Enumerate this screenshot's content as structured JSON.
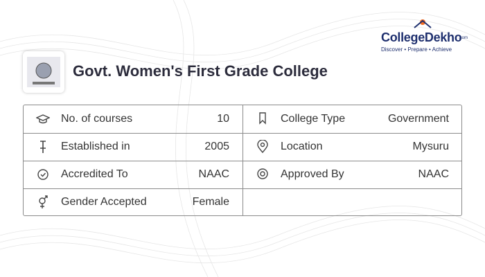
{
  "brand": {
    "name": "CollegeDekho",
    "suffix": ".com",
    "tagline": "Discover • Prepare • Achieve"
  },
  "header": {
    "title": "Govt. Women's First Grade College"
  },
  "table": {
    "left": [
      {
        "label": "No. of courses",
        "value": "10"
      },
      {
        "label": "Established in",
        "value": "2005"
      },
      {
        "label": "Accredited To",
        "value": "NAAC"
      },
      {
        "label": "Gender Accepted",
        "value": "Female"
      }
    ],
    "right": [
      {
        "label": "College Type",
        "value": "Government"
      },
      {
        "label": "Location",
        "value": "Mysuru"
      },
      {
        "label": "Approved By",
        "value": "NAAC"
      }
    ]
  }
}
